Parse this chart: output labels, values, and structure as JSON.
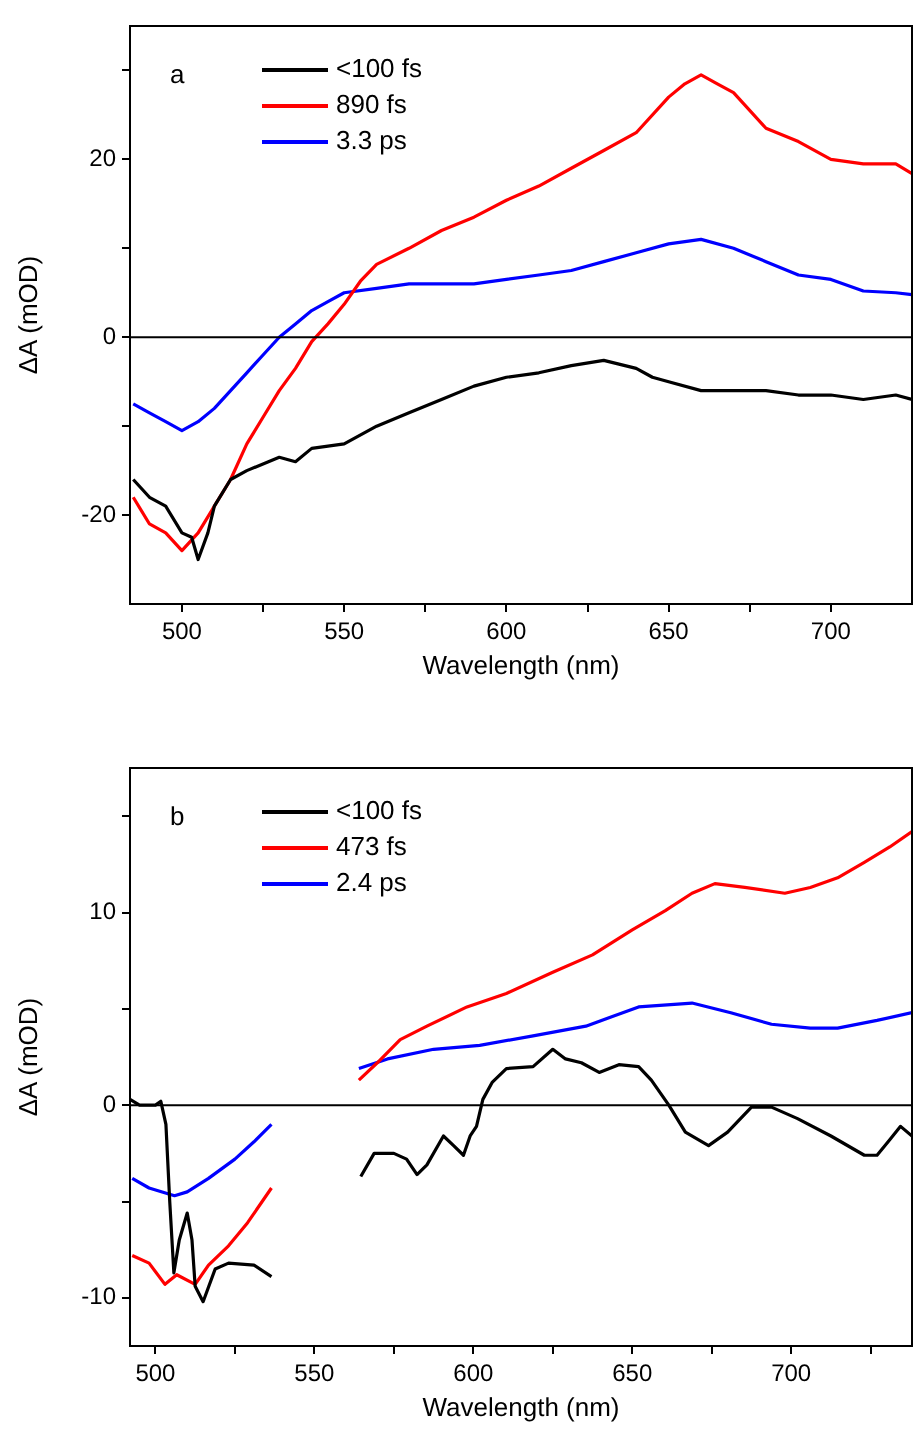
{
  "chart_data": [
    {
      "type": "line",
      "xlabel": "Wavelength (nm)",
      "ylabel": "ΔA (mOD)",
      "annotations": [
        "a"
      ],
      "legend": "top left",
      "grid": false,
      "marker": "none",
      "line_style": "solid",
      "xlim": [
        484,
        725
      ],
      "xticks": [
        500,
        {
          "value": 525,
          "label": null
        },
        550,
        {
          "value": 575,
          "label": null
        },
        600,
        {
          "value": 625,
          "label": null
        },
        650,
        {
          "value": 675,
          "label": null
        },
        700
      ],
      "ylim": [
        -30,
        35
      ],
      "yticks": [
        -20,
        {
          "value": -10,
          "label": null
        },
        0,
        {
          "value": 10,
          "label": null
        },
        20,
        {
          "value": 30,
          "label": null
        }
      ],
      "ref_lines": [
        {
          "axis": "y",
          "value": 0,
          "color": "#000000"
        }
      ],
      "series": [
        {
          "name": "<100 fs",
          "color": "#000000",
          "x": [
            485,
            490,
            495,
            500,
            503,
            505,
            508,
            510,
            515,
            520,
            530,
            535,
            540,
            550,
            560,
            570,
            580,
            590,
            600,
            610,
            620,
            630,
            640,
            645,
            650,
            660,
            670,
            680,
            690,
            700,
            710,
            720,
            725
          ],
          "values": [
            -16,
            -18,
            -19,
            -22,
            -22.5,
            -25,
            -22,
            -19,
            -16,
            -15,
            -13.5,
            -14,
            -12.5,
            -12,
            -10,
            -8.5,
            -7,
            -5.5,
            -4.5,
            -4,
            -3.2,
            -2.6,
            -3.5,
            -4.5,
            -5,
            -6,
            -6,
            -6,
            -6.5,
            -6.5,
            -7,
            -6.5,
            -7
          ]
        },
        {
          "name": "890 fs",
          "color": "#ff0000",
          "x": [
            485,
            490,
            495,
            500,
            505,
            510,
            515,
            520,
            525,
            530,
            535,
            540,
            545,
            550,
            555,
            560,
            570,
            580,
            590,
            600,
            610,
            620,
            630,
            640,
            650,
            655,
            660,
            665,
            670,
            680,
            690,
            700,
            710,
            720,
            725
          ],
          "values": [
            -18,
            -21,
            -22,
            -24,
            -22,
            -19,
            -16,
            -12,
            -9,
            -6,
            -3.5,
            -0.5,
            1.5,
            3.7,
            6.3,
            8.2,
            10,
            12,
            13.5,
            15.4,
            17,
            19,
            21,
            23,
            27,
            28.5,
            29.5,
            28.5,
            27.5,
            23.5,
            22,
            20,
            19.5,
            19.5,
            18.4
          ]
        },
        {
          "name": "3.3 ps",
          "color": "#0000ff",
          "x": [
            485,
            490,
            495,
            500,
            505,
            510,
            515,
            520,
            525,
            530,
            535,
            540,
            545,
            550,
            560,
            570,
            580,
            590,
            600,
            610,
            620,
            630,
            640,
            650,
            660,
            670,
            680,
            690,
            700,
            710,
            720,
            725
          ],
          "values": [
            -7.5,
            -8.5,
            -9.5,
            -10.5,
            -9.5,
            -8,
            -6,
            -4,
            -2,
            0,
            1.5,
            3,
            4,
            5,
            5.5,
            6,
            6,
            6,
            6.5,
            7,
            7.5,
            8.5,
            9.5,
            10.5,
            11,
            10,
            8.5,
            7,
            6.5,
            5.2,
            5,
            4.8
          ]
        }
      ]
    },
    {
      "type": "line",
      "xlabel": "Wavelength (nm)",
      "ylabel": "ΔA (mOD)",
      "annotations": [
        "b"
      ],
      "legend": "top left",
      "grid": false,
      "marker": "none",
      "line_style": "solid",
      "xlim": [
        492,
        738
      ],
      "xticks": [
        500,
        {
          "value": 525,
          "label": null
        },
        550,
        {
          "value": 575,
          "label": null
        },
        600,
        {
          "value": 625,
          "label": null
        },
        650,
        {
          "value": 675,
          "label": null
        },
        700,
        {
          "value": 725,
          "label": null
        }
      ],
      "ylim": [
        -12.5,
        17.5
      ],
      "yticks": [
        -10,
        {
          "value": -5,
          "label": null
        },
        0,
        {
          "value": 5,
          "label": null
        },
        10,
        {
          "value": 15,
          "label": null
        }
      ],
      "ref_lines": [
        {
          "axis": "y",
          "value": 0,
          "color": "#000000"
        }
      ],
      "series": [
        {
          "name": "<100 fs",
          "color": "#000000",
          "x": [
            492,
            495,
            500,
            501.7,
            503.3,
            504.5,
            505.8,
            507.5,
            510,
            511.5,
            512.5,
            515,
            518.8,
            523,
            531,
            536.5,
            550,
            564.6,
            568.8,
            575,
            579,
            582.3,
            585.4,
            590.6,
            593.8,
            596.9,
            599,
            601,
            603,
            606,
            610.4,
            618.8,
            625,
            629,
            634,
            639.6,
            645.8,
            652,
            656,
            661.5,
            666.7,
            674,
            680,
            687.5,
            693.8,
            702,
            712.5,
            723,
            727,
            731,
            734.4,
            738
          ],
          "values": [
            0.3,
            0,
            0,
            0.2,
            -1,
            -5,
            -8.7,
            -7,
            -5.6,
            -7,
            -9.4,
            -10.2,
            -8.5,
            -8.2,
            -8.3,
            -8.9,
            null,
            -3.7,
            -2.5,
            -2.5,
            -2.8,
            -3.6,
            -3.1,
            -1.6,
            -2.1,
            -2.6,
            -1.6,
            -1.1,
            0.3,
            1.2,
            1.9,
            2,
            2.9,
            2.4,
            2.2,
            1.7,
            2.1,
            2,
            1.3,
            0,
            -1.4,
            -2.1,
            -1.4,
            -0.1,
            -0.1,
            -0.7,
            -1.6,
            -2.6,
            -2.6,
            -1.8,
            -1.1,
            -1.6
          ]
        },
        {
          "name": "473 fs",
          "color": "#ff0000",
          "x": [
            492.7,
            498,
            503,
            506.7,
            512.5,
            516.7,
            523,
            529,
            536.5,
            550,
            564,
            569.8,
            577,
            585.4,
            598,
            610.4,
            625,
            637.5,
            650,
            660.4,
            668.8,
            676,
            685.4,
            698,
            706,
            714.6,
            723,
            731,
            738
          ],
          "values": [
            -7.8,
            -8.2,
            -9.3,
            -8.8,
            -9.3,
            -8.3,
            -7.3,
            -6.1,
            -4.3,
            null,
            1.3,
            2.2,
            3.4,
            4.1,
            5.1,
            5.8,
            6.9,
            7.8,
            9.1,
            10.1,
            11,
            11.5,
            11.3,
            11,
            11.3,
            11.8,
            12.6,
            13.4,
            14.2
          ]
        },
        {
          "name": "2.4 ps",
          "color": "#0000ff",
          "x": [
            492.7,
            498,
            506,
            510,
            516.7,
            525,
            531,
            536.5,
            550,
            564,
            573,
            587.5,
            602,
            618.8,
            635.4,
            652,
            668.8,
            681,
            693.8,
            706,
            714.6,
            727,
            738
          ],
          "values": [
            -3.8,
            -4.3,
            -4.7,
            -4.5,
            -3.8,
            -2.8,
            -1.9,
            -1,
            null,
            1.9,
            2.4,
            2.9,
            3.1,
            3.6,
            4.1,
            5.1,
            5.3,
            4.8,
            4.2,
            4,
            4,
            4.4,
            4.8
          ]
        }
      ]
    }
  ]
}
